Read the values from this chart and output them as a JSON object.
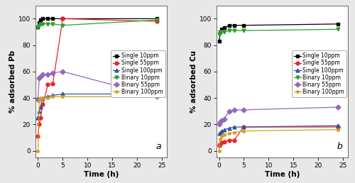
{
  "panel_a": {
    "title_label": "a",
    "ylabel": "% adsorbed Pb",
    "xlabel": "Time (h)",
    "ylim": [
      -5,
      110
    ],
    "xlim": [
      -0.5,
      26
    ],
    "xticks": [
      0,
      5,
      10,
      15,
      20,
      25
    ],
    "yticks": [
      0,
      20,
      40,
      60,
      80,
      100
    ],
    "series": [
      {
        "label": "Single 10ppm",
        "color": "#000000",
        "marker": "s",
        "x": [
          0,
          0.25,
          0.5,
          1,
          2,
          3,
          5,
          24
        ],
        "y": [
          94,
          97,
          99,
          100,
          100,
          100,
          100,
          100
        ]
      },
      {
        "label": "Single 55ppm",
        "color": "#e8232a",
        "marker": "o",
        "x": [
          0,
          0.25,
          0.5,
          1,
          2,
          3,
          5,
          24
        ],
        "y": [
          11,
          20,
          25,
          35,
          50,
          51,
          100,
          98
        ]
      },
      {
        "label": "Single 100ppm",
        "color": "#3c52a0",
        "marker": "^",
        "x": [
          0,
          0.25,
          0.5,
          1,
          2,
          3,
          5,
          24
        ],
        "y": [
          25,
          30,
          33,
          40,
          41,
          42,
          43,
          43
        ]
      },
      {
        "label": "Binary 10ppm",
        "color": "#2ca02c",
        "marker": "v",
        "x": [
          0,
          0.25,
          0.5,
          1,
          2,
          3,
          5,
          24
        ],
        "y": [
          93,
          95,
          96,
          96,
          96,
          96,
          95,
          99
        ]
      },
      {
        "label": "Binary 55ppm",
        "color": "#9467bd",
        "marker": "D",
        "x": [
          0,
          0.25,
          0.5,
          1,
          2,
          3,
          5,
          24
        ],
        "y": [
          39,
          55,
          56,
          58,
          58,
          59,
          60,
          41
        ]
      },
      {
        "label": "Binary 100ppm",
        "color": "#d4a017",
        "marker": "*",
        "x": [
          0,
          0.25,
          0.5,
          1,
          2,
          3,
          5,
          24
        ],
        "y": [
          0,
          38,
          40,
          40,
          40,
          41,
          41,
          41
        ]
      }
    ]
  },
  "panel_b": {
    "title_label": "b",
    "ylabel": "% adsorbed Cu",
    "xlabel": "Time (h)",
    "ylim": [
      -5,
      110
    ],
    "xlim": [
      -0.5,
      26
    ],
    "xticks": [
      0,
      5,
      10,
      15,
      20,
      25
    ],
    "yticks": [
      0,
      20,
      40,
      60,
      80,
      100
    ],
    "series": [
      {
        "label": "Single 10ppm",
        "color": "#000000",
        "marker": "s",
        "x": [
          0,
          0.25,
          0.5,
          1,
          2,
          3,
          5,
          24
        ],
        "y": [
          83,
          90,
          92,
          93,
          95,
          95,
          95,
          96
        ]
      },
      {
        "label": "Single 55ppm",
        "color": "#e8232a",
        "marker": "o",
        "x": [
          0,
          0.25,
          0.5,
          1,
          2,
          3,
          5,
          24
        ],
        "y": [
          4,
          5,
          6,
          7,
          8,
          8,
          18,
          18
        ]
      },
      {
        "label": "Single 100ppm",
        "color": "#3c52a0",
        "marker": "^",
        "x": [
          0,
          0.25,
          0.5,
          1,
          2,
          3,
          5,
          24
        ],
        "y": [
          13,
          14,
          15,
          16,
          17,
          18,
          18,
          19
        ]
      },
      {
        "label": "Binary 10ppm",
        "color": "#2ca02c",
        "marker": "v",
        "x": [
          0,
          0.25,
          0.5,
          1,
          2,
          3,
          5,
          24
        ],
        "y": [
          88,
          90,
          90,
          90,
          91,
          91,
          91,
          92
        ]
      },
      {
        "label": "Binary 55ppm",
        "color": "#9467bd",
        "marker": "D",
        "x": [
          0,
          0.25,
          0.5,
          1,
          2,
          3,
          5,
          24
        ],
        "y": [
          20,
          22,
          23,
          24,
          30,
          31,
          31,
          33
        ]
      },
      {
        "label": "Binary 100ppm",
        "color": "#d4a017",
        "marker": "*",
        "x": [
          0,
          0.25,
          0.5,
          1,
          2,
          3,
          5,
          24
        ],
        "y": [
          0,
          9,
          11,
          12,
          13,
          14,
          15,
          16
        ]
      }
    ]
  },
  "background_color": "#e8e8e8",
  "plot_bg_color": "#ffffff",
  "linewidth": 0.9,
  "markersize": 3.5,
  "legend_fontsize": 5.5,
  "tick_fontsize": 6.5,
  "label_fontsize": 7.5,
  "panel_label_fontsize": 9
}
